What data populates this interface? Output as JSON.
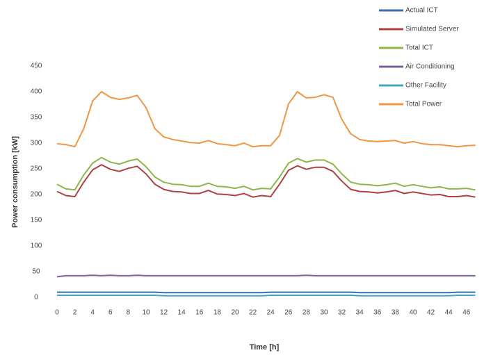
{
  "chart_data": {
    "type": "line",
    "y_label": "Power consumption [kW]",
    "x_label": "Time [h]",
    "x": [
      0,
      1,
      2,
      3,
      4,
      5,
      6,
      7,
      8,
      9,
      10,
      11,
      12,
      13,
      14,
      15,
      16,
      17,
      18,
      19,
      20,
      21,
      22,
      23,
      24,
      25,
      26,
      27,
      28,
      29,
      30,
      31,
      32,
      33,
      34,
      35,
      36,
      37,
      38,
      39,
      40,
      41,
      42,
      43,
      44,
      45,
      46,
      47
    ],
    "xlim": [
      0,
      47.5
    ],
    "xticks": [
      0,
      2,
      4,
      6,
      8,
      10,
      12,
      14,
      16,
      18,
      20,
      22,
      24,
      26,
      28,
      30,
      32,
      34,
      36,
      38,
      40,
      42,
      44,
      46
    ],
    "ylim": [
      0,
      450
    ],
    "yticks": [
      0,
      50,
      100,
      150,
      200,
      250,
      300,
      350,
      400,
      450
    ],
    "grid": false,
    "legend": "top-right",
    "series": [
      {
        "name": "Actual ICT",
        "color": "#3d6fb0",
        "values": [
          10,
          10,
          10,
          10,
          10,
          10,
          10,
          10,
          10,
          10,
          10,
          10,
          9,
          9,
          9,
          9,
          9,
          9,
          9,
          9,
          9,
          9,
          9,
          9,
          10,
          10,
          10,
          10,
          10,
          10,
          10,
          10,
          10,
          10,
          9,
          9,
          9,
          9,
          9,
          9,
          9,
          9,
          9,
          9,
          9,
          10,
          10,
          10
        ]
      },
      {
        "name": "Simulated Server",
        "color": "#b0403f",
        "values": [
          206,
          198,
          196,
          224,
          248,
          258,
          249,
          245,
          251,
          255,
          240,
          220,
          210,
          206,
          205,
          202,
          202,
          208,
          201,
          200,
          198,
          202,
          195,
          198,
          196,
          220,
          247,
          256,
          249,
          253,
          253,
          245,
          226,
          210,
          206,
          205,
          203,
          205,
          208,
          202,
          205,
          202,
          199,
          200,
          196,
          196,
          198,
          195
        ]
      },
      {
        "name": "Total ICT",
        "color": "#8db547",
        "values": [
          220,
          211,
          209,
          238,
          261,
          272,
          263,
          259,
          265,
          269,
          254,
          234,
          224,
          220,
          219,
          216,
          216,
          222,
          216,
          215,
          212,
          216,
          209,
          212,
          211,
          234,
          261,
          270,
          263,
          267,
          267,
          259,
          240,
          224,
          220,
          219,
          217,
          219,
          222,
          216,
          219,
          216,
          213,
          215,
          211,
          211,
          212,
          209
        ]
      },
      {
        "name": "Air Conditioning",
        "color": "#7a5ea0",
        "values": [
          40,
          42,
          42,
          42,
          43,
          42,
          43,
          42,
          42,
          43,
          42,
          42,
          42,
          42,
          42,
          42,
          42,
          42,
          42,
          42,
          42,
          42,
          42,
          42,
          42,
          42,
          42,
          42,
          43,
          42,
          42,
          42,
          42,
          42,
          42,
          42,
          42,
          42,
          42,
          42,
          42,
          42,
          42,
          42,
          42,
          42,
          42,
          42
        ]
      },
      {
        "name": "Other Facility",
        "color": "#41a5c6",
        "values": [
          4,
          4,
          4,
          4,
          4,
          4,
          4,
          4,
          4,
          4,
          4,
          4,
          3,
          3,
          3,
          3,
          3,
          3,
          3,
          3,
          3,
          3,
          3,
          3,
          4,
          4,
          4,
          4,
          4,
          4,
          4,
          4,
          4,
          4,
          3,
          3,
          3,
          3,
          3,
          3,
          3,
          3,
          3,
          3,
          3,
          4,
          4,
          4
        ]
      },
      {
        "name": "Total Power",
        "color": "#ef9544",
        "values": [
          299,
          297,
          293,
          328,
          382,
          400,
          389,
          385,
          388,
          393,
          369,
          328,
          312,
          307,
          304,
          301,
          300,
          305,
          299,
          297,
          295,
          300,
          293,
          295,
          295,
          315,
          376,
          400,
          388,
          389,
          394,
          389,
          346,
          318,
          307,
          304,
          303,
          304,
          305,
          300,
          303,
          299,
          297,
          297,
          295,
          293,
          295,
          296
        ]
      }
    ]
  }
}
